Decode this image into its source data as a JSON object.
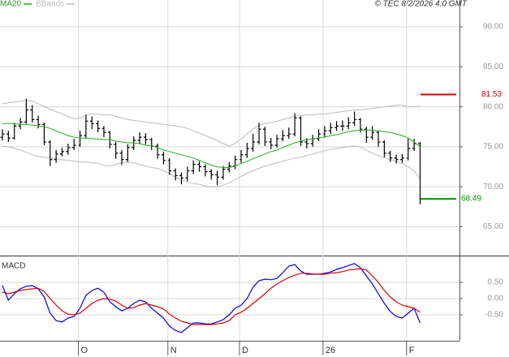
{
  "chart_data": [
    {
      "type": "ohlc",
      "source": "© TEC 8/2/2026 4:0 GMT",
      "categories": [
        null,
        null,
        null,
        null,
        null,
        null,
        null,
        null,
        null,
        null,
        null,
        null,
        null,
        "O",
        null,
        null,
        null,
        null,
        null,
        null,
        null,
        null,
        null,
        null,
        null,
        null,
        null,
        null,
        "N",
        null,
        null,
        null,
        null,
        null,
        null,
        null,
        null,
        null,
        null,
        null,
        "D",
        null,
        null,
        null,
        null,
        null,
        null,
        null,
        null,
        null,
        null,
        null,
        null,
        null,
        "26",
        null,
        null,
        null,
        null,
        null,
        null,
        null,
        null,
        null,
        null,
        null,
        null,
        null,
        "F",
        null,
        null
      ],
      "ohlc": {
        "color": "#000000",
        "open": [
          76.2,
          76.6,
          76.1,
          77.6,
          78.1,
          79.6,
          78.4,
          77.8,
          75.6,
          73.4,
          74.1,
          74.4,
          74.9,
          75.2,
          76.4,
          78.2,
          77.9,
          77.3,
          76.8,
          75.3,
          74.2,
          73.4,
          74.9,
          75.8,
          76.2,
          75.9,
          75.1,
          74.0,
          73.3,
          72.0,
          71.4,
          71.1,
          72.0,
          72.8,
          72.5,
          71.9,
          71.5,
          71.2,
          72.2,
          72.6,
          73.4,
          74.0,
          74.8,
          75.6,
          77.2,
          75.6,
          75.2,
          76.0,
          76.4,
          76.6,
          78.6,
          75.6,
          75.4,
          76.0,
          76.6,
          77.0,
          77.4,
          77.6,
          77.6,
          78.0,
          78.4,
          77.2,
          76.2,
          76.8,
          75.6,
          74.2,
          73.6,
          73.4,
          73.6,
          74.8,
          75.4
        ],
        "high": [
          77.2,
          77.0,
          78.0,
          78.6,
          81.0,
          80.2,
          78.9,
          78.0,
          75.8,
          74.6,
          74.9,
          75.4,
          76.0,
          77.0,
          79.0,
          78.8,
          78.3,
          77.6,
          77.0,
          75.6,
          74.6,
          75.3,
          76.3,
          76.8,
          76.7,
          76.1,
          75.4,
          74.4,
          73.6,
          72.3,
          71.8,
          72.5,
          73.3,
          73.2,
          72.8,
          72.2,
          72.0,
          72.6,
          73.1,
          73.9,
          74.6,
          75.5,
          76.6,
          78.0,
          77.5,
          76.1,
          76.5,
          77.1,
          77.4,
          79.2,
          78.8,
          76.1,
          76.5,
          77.2,
          77.6,
          78.0,
          78.2,
          78.3,
          78.7,
          79.4,
          78.6,
          77.5,
          77.6,
          77.0,
          75.8,
          74.5,
          74.0,
          74.1,
          76.0,
          76.0,
          75.6
        ],
        "low": [
          75.8,
          75.6,
          75.9,
          77.2,
          77.9,
          78.0,
          77.3,
          75.2,
          72.6,
          73.0,
          73.8,
          74.0,
          74.6,
          75.0,
          76.0,
          77.2,
          76.8,
          76.2,
          74.8,
          73.5,
          72.7,
          73.1,
          74.6,
          75.4,
          75.3,
          74.6,
          73.5,
          72.8,
          71.5,
          70.8,
          70.3,
          70.7,
          71.6,
          71.9,
          71.3,
          70.9,
          70.2,
          70.9,
          71.8,
          72.2,
          73.0,
          73.6,
          74.4,
          75.3,
          75.1,
          74.7,
          74.9,
          75.7,
          76.0,
          76.3,
          75.1,
          74.8,
          75.0,
          75.7,
          76.2,
          76.6,
          77.0,
          77.0,
          77.2,
          77.6,
          76.8,
          75.5,
          75.9,
          75.0,
          73.7,
          73.1,
          72.9,
          73.0,
          73.3,
          74.5,
          67.8
        ],
        "close": [
          76.6,
          76.1,
          77.6,
          78.1,
          79.6,
          78.4,
          77.8,
          75.6,
          73.4,
          74.1,
          74.4,
          74.9,
          75.2,
          76.4,
          78.2,
          77.9,
          77.3,
          76.8,
          75.3,
          74.2,
          73.4,
          74.9,
          75.8,
          76.2,
          75.9,
          75.1,
          74.0,
          73.3,
          72.0,
          71.4,
          71.1,
          72.0,
          72.8,
          72.5,
          71.9,
          71.5,
          71.2,
          72.2,
          72.6,
          73.4,
          74.0,
          74.8,
          75.6,
          77.2,
          75.6,
          75.2,
          76.0,
          76.4,
          76.6,
          78.6,
          75.6,
          75.4,
          76.0,
          76.6,
          77.0,
          77.4,
          77.6,
          77.6,
          78.0,
          78.4,
          77.2,
          76.2,
          76.8,
          75.6,
          74.2,
          73.6,
          73.4,
          73.6,
          74.8,
          75.4,
          68.49
        ]
      },
      "series": [
        {
          "name": "MA20",
          "color": "#22aa22",
          "values": [
            77.9,
            77.9,
            77.9,
            77.8,
            77.8,
            77.7,
            77.6,
            77.5,
            77.3,
            77.0,
            76.7,
            76.4,
            76.2,
            76.1,
            76.1,
            76.0,
            76.0,
            75.9,
            75.9,
            75.7,
            75.6,
            75.5,
            75.5,
            75.4,
            75.2,
            75.1,
            74.9,
            74.6,
            74.4,
            74.2,
            74.0,
            73.8,
            73.6,
            73.3,
            73.0,
            72.7,
            72.5,
            72.4,
            72.4,
            72.6,
            72.9,
            73.2,
            73.5,
            73.8,
            74.1,
            74.4,
            74.6,
            74.9,
            75.2,
            75.5,
            75.7,
            75.9,
            76.0,
            76.1,
            76.2,
            76.4,
            76.5,
            76.7,
            76.9,
            77.0,
            77.1,
            77.1,
            77.1,
            77.0,
            76.9,
            76.8,
            76.6,
            76.4,
            76.1,
            75.6,
            75.0
          ]
        },
        {
          "name": "BBands",
          "color": "#bbbbbb",
          "upper": [
            80.4,
            80.5,
            80.6,
            80.7,
            80.8,
            80.7,
            80.4,
            80.0,
            79.7,
            79.4,
            79.1,
            78.8,
            78.5,
            78.6,
            79.0,
            79.1,
            79.1,
            79.0,
            79.0,
            78.8,
            78.6,
            78.4,
            78.3,
            78.2,
            78.1,
            78.0,
            77.9,
            77.8,
            77.7,
            77.6,
            77.5,
            77.3,
            77.0,
            76.7,
            76.4,
            76.1,
            75.8,
            75.4,
            75.1,
            75.4,
            76.0,
            76.6,
            77.2,
            77.7,
            77.9,
            78.0,
            78.2,
            78.4,
            78.6,
            78.8,
            78.9,
            79.0,
            79.0,
            79.1,
            79.1,
            79.2,
            79.3,
            79.4,
            79.5,
            79.6,
            79.6,
            79.7,
            79.8,
            79.9,
            80.0,
            80.1,
            80.2,
            80.2,
            80.0,
            80.0,
            80.1
          ],
          "lower": [
            75.1,
            75.0,
            74.8,
            74.6,
            74.3,
            74.0,
            73.8,
            73.7,
            73.6,
            73.5,
            73.4,
            73.3,
            73.2,
            73.1,
            73.1,
            73.0,
            72.9,
            72.7,
            72.6,
            72.8,
            73.0,
            73.1,
            73.0,
            72.8,
            72.6,
            72.4,
            72.3,
            72.0,
            71.6,
            71.2,
            70.9,
            70.6,
            70.4,
            70.3,
            70.1,
            70.0,
            70.0,
            70.2,
            70.5,
            70.9,
            71.3,
            71.7,
            72.0,
            72.3,
            72.6,
            72.8,
            73.0,
            73.2,
            73.4,
            73.6,
            73.7,
            73.9,
            74.1,
            74.3,
            74.5,
            74.7,
            74.8,
            74.9,
            75.0,
            75.1,
            75.0,
            74.6,
            74.2,
            73.9,
            73.6,
            73.4,
            73.2,
            72.9,
            72.5,
            72.0,
            71.0
          ]
        }
      ],
      "levels": [
        {
          "value": 81.53,
          "color": "#cc0000"
        },
        {
          "value": 68.49,
          "color": "#009900"
        }
      ],
      "ylim": [
        61.4,
        93.35
      ],
      "yticks": [
        {
          "value": 90,
          "label": "90.00"
        },
        {
          "value": 85,
          "label": "85.00"
        },
        {
          "value": 80,
          "label": "80.00"
        },
        {
          "value": 75,
          "label": "75.00"
        },
        {
          "value": 70,
          "label": "70.00"
        },
        {
          "value": 65,
          "label": "65.00"
        }
      ],
      "grid": true
    },
    {
      "type": "line",
      "title": "MACD",
      "series": [
        {
          "color": "#0000ee",
          "values": [
            0.4,
            -0.05,
            0.15,
            0.3,
            0.38,
            0.4,
            0.3,
            0.05,
            -0.45,
            -0.68,
            -0.72,
            -0.6,
            -0.55,
            -0.3,
            0.1,
            0.25,
            0.32,
            0.2,
            -0.1,
            -0.25,
            -0.38,
            -0.3,
            -0.15,
            -0.05,
            -0.1,
            -0.3,
            -0.45,
            -0.6,
            -0.85,
            -0.98,
            -1.05,
            -0.9,
            -0.75,
            -0.75,
            -0.78,
            -0.78,
            -0.72,
            -0.65,
            -0.5,
            -0.3,
            -0.2,
            0.0,
            0.35,
            0.55,
            0.6,
            0.58,
            0.62,
            0.8,
            1.0,
            1.05,
            0.85,
            0.75,
            0.75,
            0.75,
            0.78,
            0.82,
            0.9,
            0.95,
            1.02,
            1.08,
            0.95,
            0.7,
            0.45,
            0.15,
            -0.15,
            -0.4,
            -0.55,
            -0.6,
            -0.45,
            -0.3,
            -0.75
          ]
        },
        {
          "color": "#dd0000",
          "values": [
            0.2,
            0.15,
            0.2,
            0.25,
            0.28,
            0.3,
            0.32,
            0.22,
            0.0,
            -0.2,
            -0.38,
            -0.48,
            -0.5,
            -0.45,
            -0.3,
            -0.15,
            -0.05,
            0.0,
            -0.02,
            -0.08,
            -0.2,
            -0.3,
            -0.28,
            -0.2,
            -0.15,
            -0.2,
            -0.25,
            -0.32,
            -0.48,
            -0.6,
            -0.7,
            -0.75,
            -0.8,
            -0.8,
            -0.8,
            -0.8,
            -0.78,
            -0.75,
            -0.68,
            -0.5,
            -0.42,
            -0.3,
            -0.15,
            0.0,
            0.15,
            0.32,
            0.45,
            0.55,
            0.65,
            0.72,
            0.78,
            0.78,
            0.76,
            0.75,
            0.75,
            0.78,
            0.8,
            0.83,
            0.88,
            0.9,
            0.92,
            0.88,
            0.7,
            0.5,
            0.25,
            0.05,
            -0.1,
            -0.2,
            -0.25,
            -0.3,
            -0.42
          ]
        }
      ],
      "ylim": [
        -1.3,
        1.3
      ],
      "yticks": [
        {
          "value": 0.5,
          "label": "0.50"
        },
        {
          "value": 0,
          "label": "0.00"
        },
        {
          "value": -0.5,
          "label": "-0.50"
        }
      ],
      "grid": true
    }
  ]
}
